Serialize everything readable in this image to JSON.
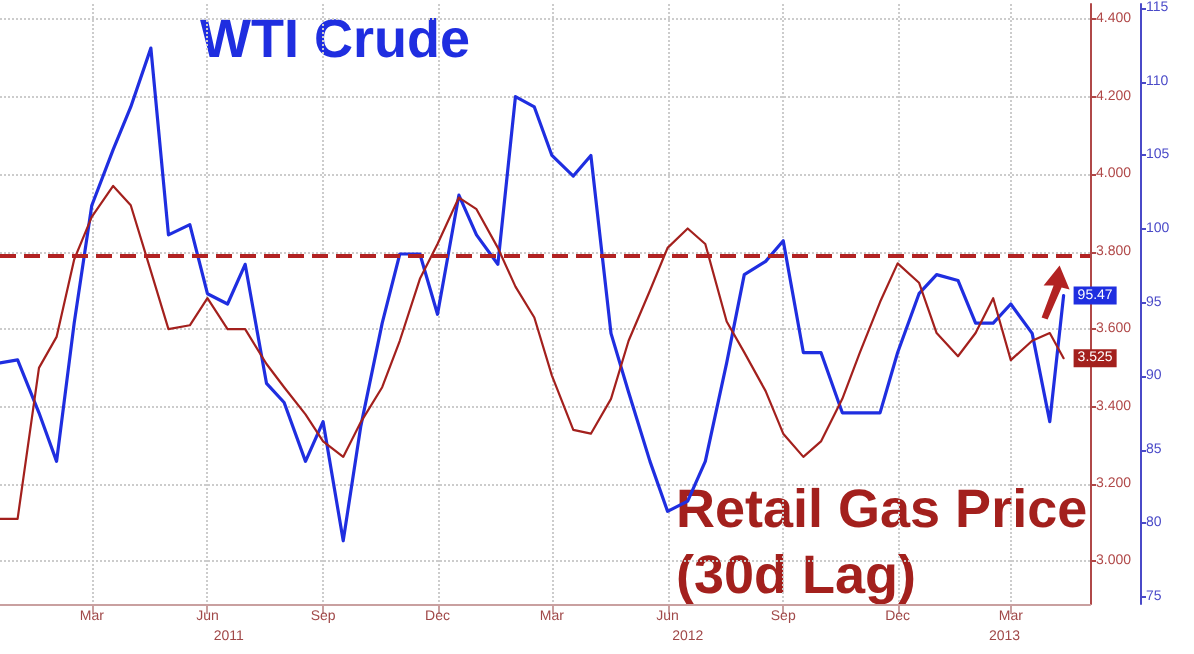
{
  "chart_data": {
    "type": "line",
    "x": [
      "2011-01-01",
      "2011-01-15",
      "2011-02-01",
      "2011-02-15",
      "2011-03-01",
      "2011-03-15",
      "2011-04-01",
      "2011-04-15",
      "2011-05-01",
      "2011-05-15",
      "2011-06-01",
      "2011-06-15",
      "2011-07-01",
      "2011-07-15",
      "2011-08-01",
      "2011-08-15",
      "2011-09-01",
      "2011-09-15",
      "2011-10-01",
      "2011-10-15",
      "2011-11-01",
      "2011-11-15",
      "2011-12-01",
      "2011-12-15",
      "2012-01-01",
      "2012-01-15",
      "2012-02-01",
      "2012-02-15",
      "2012-03-01",
      "2012-03-15",
      "2012-04-01",
      "2012-04-15",
      "2012-05-01",
      "2012-05-15",
      "2012-06-01",
      "2012-06-15",
      "2012-07-01",
      "2012-07-15",
      "2012-08-01",
      "2012-08-15",
      "2012-09-01",
      "2012-09-15",
      "2012-10-01",
      "2012-10-15",
      "2012-11-01",
      "2012-11-15",
      "2012-12-01",
      "2012-12-15",
      "2013-01-01",
      "2013-01-15",
      "2013-02-01",
      "2013-02-15",
      "2013-03-01",
      "2013-03-15",
      "2013-04-01",
      "2013-04-15",
      "2013-04-26"
    ],
    "series": [
      {
        "name": "WTI Crude",
        "color": "#1f2ee0",
        "values": [
          90.9,
          91.1,
          87.5,
          84.2,
          93.6,
          101.6,
          105.4,
          108.3,
          112.3,
          99.6,
          100.3,
          95.6,
          94.9,
          97.6,
          89.5,
          88.2,
          84.2,
          86.9,
          78.8,
          86.6,
          93.6,
          98.3,
          98.3,
          94.2,
          102.3,
          99.6,
          97.6,
          109.0,
          108.3,
          105.0,
          103.6,
          105.0,
          92.9,
          88.9,
          84.2,
          80.8,
          81.5,
          84.2,
          90.9,
          96.9,
          97.8,
          99.2,
          91.6,
          91.6,
          87.5,
          87.5,
          87.5,
          91.6,
          95.6,
          96.9,
          96.5,
          93.6,
          93.6,
          94.9,
          92.9,
          86.9,
          95.47
        ],
        "value_labels": [
          null,
          null,
          null,
          null,
          null,
          null,
          null,
          null,
          null,
          null,
          null,
          null,
          null,
          null,
          null,
          null,
          null,
          null,
          null,
          null,
          null,
          null,
          null,
          null,
          null,
          null,
          null,
          null,
          null,
          null,
          null,
          null,
          null,
          null,
          null,
          null,
          null,
          null,
          null,
          null,
          null,
          null,
          null,
          null,
          null,
          null,
          null,
          null,
          null,
          null,
          null,
          null,
          null,
          null,
          null,
          null,
          "95.47"
        ]
      },
      {
        "name": "Retail Gas Price (30d Lag)",
        "color": "#a3201d",
        "axis": "y2",
        "values": [
          3.11,
          3.11,
          3.5,
          3.58,
          3.78,
          3.89,
          3.97,
          3.92,
          3.75,
          3.6,
          3.61,
          3.68,
          3.6,
          3.6,
          3.51,
          3.45,
          3.38,
          3.31,
          3.27,
          3.36,
          3.45,
          3.57,
          3.73,
          3.82,
          3.94,
          3.91,
          3.81,
          3.71,
          3.63,
          3.48,
          3.34,
          3.33,
          3.42,
          3.57,
          3.7,
          3.81,
          3.86,
          3.82,
          3.62,
          3.54,
          3.44,
          3.33,
          3.27,
          3.31,
          3.42,
          3.54,
          3.67,
          3.77,
          3.72,
          3.59,
          3.53,
          3.59,
          3.68,
          3.52,
          3.57,
          3.59,
          3.525
        ],
        "value_labels": [
          null,
          null,
          null,
          null,
          null,
          null,
          null,
          null,
          null,
          null,
          null,
          null,
          null,
          null,
          null,
          null,
          null,
          null,
          null,
          null,
          null,
          null,
          null,
          null,
          null,
          null,
          null,
          null,
          null,
          null,
          null,
          null,
          null,
          null,
          null,
          null,
          null,
          null,
          null,
          null,
          null,
          null,
          null,
          null,
          null,
          null,
          null,
          null,
          null,
          null,
          null,
          null,
          null,
          null,
          null,
          null,
          "3.525"
        ]
      }
    ],
    "xlim": [
      "2011-01-01",
      "2013-05-17"
    ],
    "xticks": [
      {
        "value": "2011-03-15",
        "label": "Mar"
      },
      {
        "value": "2011-06-15",
        "label": "Jun"
      },
      {
        "value": "2011-09-15",
        "label": "Sep"
      },
      {
        "value": "2011-12-15",
        "label": "Dec"
      },
      {
        "value": "2012-03-15",
        "label": "Mar"
      },
      {
        "value": "2012-06-15",
        "label": "Jun"
      },
      {
        "value": "2012-09-15",
        "label": "Sep"
      },
      {
        "value": "2012-12-15",
        "label": "Dec"
      },
      {
        "value": "2013-03-15",
        "label": "Mar"
      }
    ],
    "x2lim": [
      "2011-01-01",
      "2013-05-17"
    ],
    "x2ticks": [
      {
        "value": "2011-07-02",
        "label": "2011"
      },
      {
        "value": "2012-07-01",
        "label": "2012"
      },
      {
        "value": "2013-03-10",
        "label": "2013"
      }
    ],
    "ylim": [
      74.5,
      115.3
    ],
    "yticks": [
      75,
      80,
      85,
      90,
      95,
      100,
      105,
      110,
      115
    ],
    "y2lim": [
      2.89,
      4.44
    ],
    "y2ticks": [
      {
        "value": 3.0,
        "label": "3.000"
      },
      {
        "value": 3.2,
        "label": "3.200"
      },
      {
        "value": 3.4,
        "label": "3.400"
      },
      {
        "value": 3.6,
        "label": "3.600"
      },
      {
        "value": 3.8,
        "label": "3.800"
      },
      {
        "value": 4.0,
        "label": "4.000"
      },
      {
        "value": 4.2,
        "label": "4.200"
      },
      {
        "value": 4.4,
        "label": "4.400"
      }
    ],
    "ref_lines": [
      {
        "axis": "y2",
        "value": 3.79,
        "color": "#b22222",
        "line_style": "dashed"
      }
    ],
    "grid": true,
    "marker": "none",
    "line_style": "solid"
  }
}
